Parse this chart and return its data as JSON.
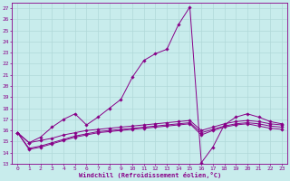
{
  "xlabel": "Windchill (Refroidissement éolien,°C)",
  "background_color": "#c8ecec",
  "grid_color": "#b0d8d8",
  "line_color": "#880088",
  "xlim": [
    -0.5,
    23.5
  ],
  "ylim": [
    13,
    27.5
  ],
  "yticks": [
    13,
    14,
    15,
    16,
    17,
    18,
    19,
    20,
    21,
    22,
    23,
    24,
    25,
    26,
    27
  ],
  "xticks": [
    0,
    1,
    2,
    3,
    4,
    5,
    6,
    7,
    8,
    9,
    10,
    11,
    12,
    13,
    14,
    15,
    16,
    17,
    18,
    19,
    20,
    21,
    22,
    23
  ],
  "series": [
    {
      "x": [
        0,
        1,
        2,
        3,
        4,
        5,
        6,
        7,
        8,
        9,
        10,
        11,
        12,
        13,
        14,
        15,
        16,
        17,
        18,
        19,
        20,
        21,
        22,
        23
      ],
      "y": [
        15.8,
        14.9,
        15.1,
        15.3,
        15.6,
        15.8,
        16.0,
        16.1,
        16.2,
        16.3,
        16.4,
        16.5,
        16.6,
        16.7,
        16.8,
        16.9,
        16.0,
        16.3,
        16.6,
        16.8,
        16.9,
        16.8,
        16.6,
        16.5
      ]
    },
    {
      "x": [
        0,
        1,
        2,
        3,
        4,
        5,
        6,
        7,
        8,
        9,
        10,
        11,
        12,
        13,
        14,
        15,
        16,
        17,
        18,
        19,
        20,
        21,
        22,
        23
      ],
      "y": [
        15.8,
        14.4,
        14.6,
        14.9,
        15.2,
        15.5,
        15.7,
        15.9,
        16.0,
        16.1,
        16.2,
        16.3,
        16.4,
        16.5,
        16.6,
        16.7,
        15.8,
        16.1,
        16.4,
        16.6,
        16.7,
        16.6,
        16.4,
        16.3
      ]
    },
    {
      "x": [
        0,
        1,
        2,
        3,
        4,
        5,
        6,
        7,
        8,
        9,
        10,
        11,
        12,
        13,
        14,
        15,
        16,
        17,
        18,
        19,
        20,
        21,
        22,
        23
      ],
      "y": [
        15.8,
        14.3,
        14.5,
        14.8,
        15.1,
        15.4,
        15.6,
        15.8,
        15.9,
        16.0,
        16.1,
        16.2,
        16.3,
        16.4,
        16.5,
        16.6,
        15.6,
        16.0,
        16.3,
        16.5,
        16.6,
        16.4,
        16.2,
        16.1
      ]
    },
    {
      "x": [
        0,
        1,
        2,
        3,
        4,
        5,
        6,
        7,
        8,
        9,
        10,
        11,
        12,
        13,
        14,
        15,
        16,
        17,
        18,
        19,
        20,
        21,
        22,
        23
      ],
      "y": [
        15.8,
        14.9,
        15.4,
        16.3,
        17.0,
        17.5,
        16.5,
        17.2,
        18.0,
        18.8,
        20.8,
        22.3,
        22.9,
        23.3,
        25.5,
        27.1,
        13.1,
        14.5,
        16.5,
        17.2,
        17.5,
        17.2,
        16.8,
        16.6
      ]
    }
  ]
}
